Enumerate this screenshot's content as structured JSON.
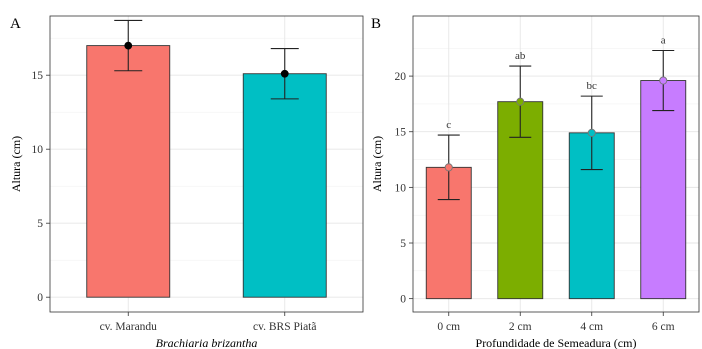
{
  "chart_data": [
    {
      "panel": "A",
      "type": "bar",
      "categories": [
        "cv. Marandu",
        "cv. BRS Piatã"
      ],
      "values": [
        17.0,
        15.1
      ],
      "error_low": [
        15.3,
        13.4
      ],
      "error_high": [
        18.7,
        16.8
      ],
      "colors": [
        "#F8766D",
        "#00BFC4"
      ],
      "point_color": "#000000",
      "xlabel": "Brachiaria brizantha",
      "ylabel": "Altura (cm)",
      "ylim": [
        -1,
        19
      ],
      "yticks": [
        0,
        5,
        10,
        15
      ],
      "ytick_labels": [
        "0",
        "5",
        "10",
        "15"
      ],
      "grid": true
    },
    {
      "panel": "B",
      "type": "bar",
      "categories": [
        "0 cm",
        "2 cm",
        "4 cm",
        "6 cm"
      ],
      "values": [
        11.8,
        17.7,
        14.9,
        19.6
      ],
      "error_low": [
        8.9,
        14.5,
        11.6,
        16.9
      ],
      "error_high": [
        14.7,
        20.9,
        18.2,
        22.3
      ],
      "letters": [
        "c",
        "ab",
        "bc",
        "a"
      ],
      "colors": [
        "#F8766D",
        "#7CAE00",
        "#00BFC4",
        "#C77CFF"
      ],
      "xlabel": "Profundidade de Semeadura (cm)",
      "ylabel": "Altura (cm)",
      "ylim": [
        -1.2,
        25.4
      ],
      "yticks": [
        0,
        5,
        10,
        15,
        20
      ],
      "ytick_labels": [
        "0",
        "5",
        "10",
        "15",
        "20"
      ],
      "grid": true
    }
  ]
}
